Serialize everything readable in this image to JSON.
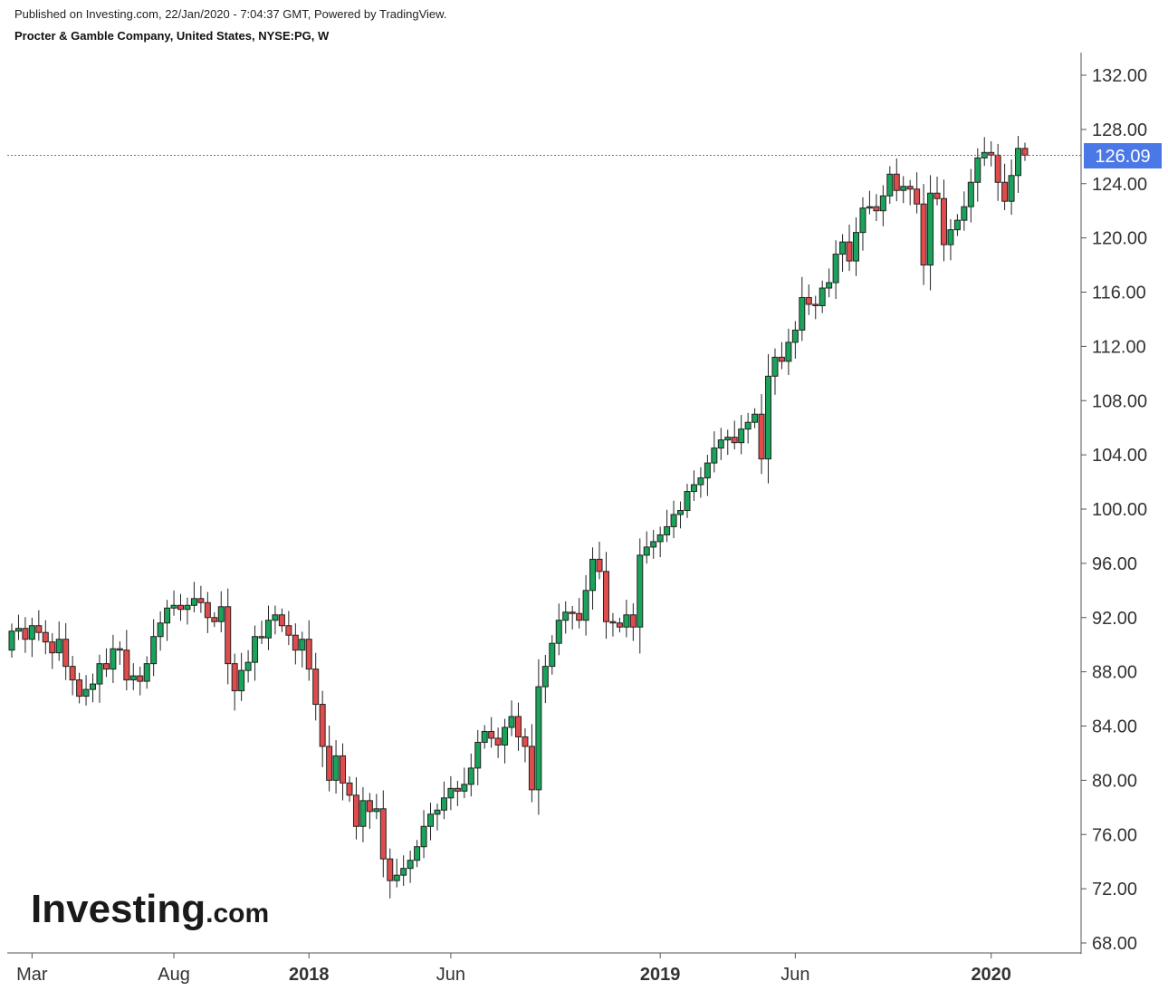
{
  "header": {
    "published": "Published on Investing.com, 22/Jan/2020 - 7:04:37 GMT, Powered by TradingView.",
    "title": "Procter & Gamble Company, United States, NYSE:PG, W"
  },
  "logo": {
    "brand": "Investing",
    "domain": ".com"
  },
  "colors": {
    "up": "#1aa35a",
    "down": "#e04c4c",
    "price_line": "#4a78e6",
    "axis": "#555555"
  },
  "chart_data": {
    "type": "candlestick",
    "interval": "weekly",
    "ylim": [
      68,
      132
    ],
    "y_ticks": [
      "132.00",
      "128.00",
      "124.00",
      "120.00",
      "116.00",
      "112.00",
      "108.00",
      "104.00",
      "100.00",
      "96.00",
      "92.00",
      "88.00",
      "84.00",
      "80.00",
      "76.00",
      "72.00",
      "68.00"
    ],
    "x_ticks": [
      {
        "label": "Mar",
        "index": 3,
        "bold": false
      },
      {
        "label": "Aug",
        "index": 24,
        "bold": false
      },
      {
        "label": "2018",
        "index": 44,
        "bold": true
      },
      {
        "label": "Jun",
        "index": 65,
        "bold": false
      },
      {
        "label": "2019",
        "index": 96,
        "bold": true
      },
      {
        "label": "Jun",
        "index": 116,
        "bold": false
      },
      {
        "label": "2020",
        "index": 145,
        "bold": true
      }
    ],
    "last_price": "126.09",
    "last_price_value": 126.09,
    "closes": [
      91.0,
      91.2,
      90.4,
      91.4,
      90.9,
      90.2,
      89.4,
      90.4,
      88.4,
      87.4,
      86.2,
      86.7,
      87.1,
      88.6,
      88.2,
      89.7,
      89.6,
      87.4,
      87.7,
      87.3,
      88.6,
      90.6,
      91.6,
      92.7,
      92.9,
      92.6,
      92.9,
      93.4,
      93.1,
      92.0,
      91.7,
      92.8,
      88.6,
      86.6,
      88.1,
      88.7,
      90.6,
      90.5,
      91.8,
      92.2,
      91.4,
      90.7,
      89.6,
      90.4,
      88.2,
      85.6,
      82.5,
      80.0,
      81.8,
      79.8,
      78.9,
      76.6,
      78.5,
      77.7,
      77.9,
      74.2,
      72.6,
      73.0,
      73.5,
      74.1,
      75.1,
      76.6,
      77.5,
      77.8,
      78.7,
      79.4,
      79.2,
      79.7,
      80.9,
      82.8,
      83.6,
      83.1,
      82.6,
      83.9,
      84.7,
      83.2,
      82.5,
      79.3,
      86.9,
      88.4,
      90.1,
      91.8,
      92.4,
      92.3,
      91.8,
      94.0,
      96.3,
      95.4,
      91.7,
      91.6,
      91.3,
      92.2,
      91.3,
      96.6,
      97.2,
      97.6,
      98.1,
      98.7,
      99.6,
      99.9,
      101.3,
      101.8,
      102.3,
      103.4,
      104.5,
      105.1,
      105.3,
      104.9,
      105.9,
      106.4,
      107.0,
      103.7,
      109.8,
      111.2,
      110.9,
      112.3,
      113.2,
      115.6,
      115.1,
      115.0,
      116.3,
      116.7,
      118.8,
      119.7,
      118.3,
      120.4,
      122.2,
      122.3,
      122.0,
      123.1,
      124.7,
      123.5,
      123.8,
      123.6,
      122.5,
      118.0,
      123.3,
      122.9,
      119.5,
      120.6,
      121.3,
      122.3,
      124.1,
      125.9,
      126.3,
      126.1,
      124.1,
      122.7,
      124.6,
      126.6,
      126.1
    ]
  }
}
